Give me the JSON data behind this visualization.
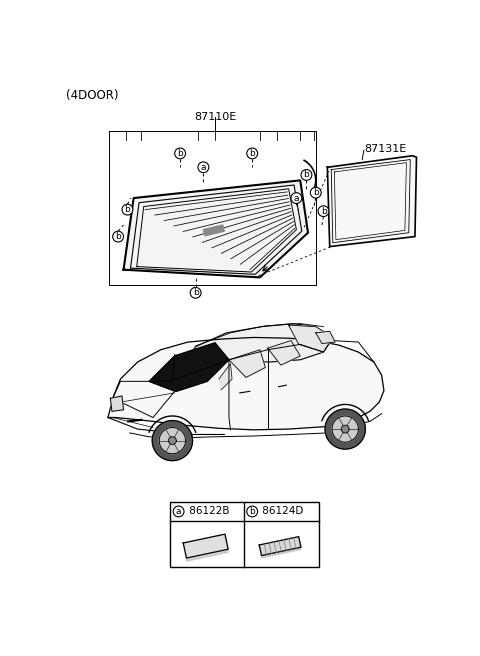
{
  "title": "(4DOOR)",
  "background_color": "#ffffff",
  "part_label_87110E": "87110E",
  "part_label_87131E": "87131E",
  "legend_a_code": "86122B",
  "legend_b_code": "86124D",
  "line_color": "#000000"
}
